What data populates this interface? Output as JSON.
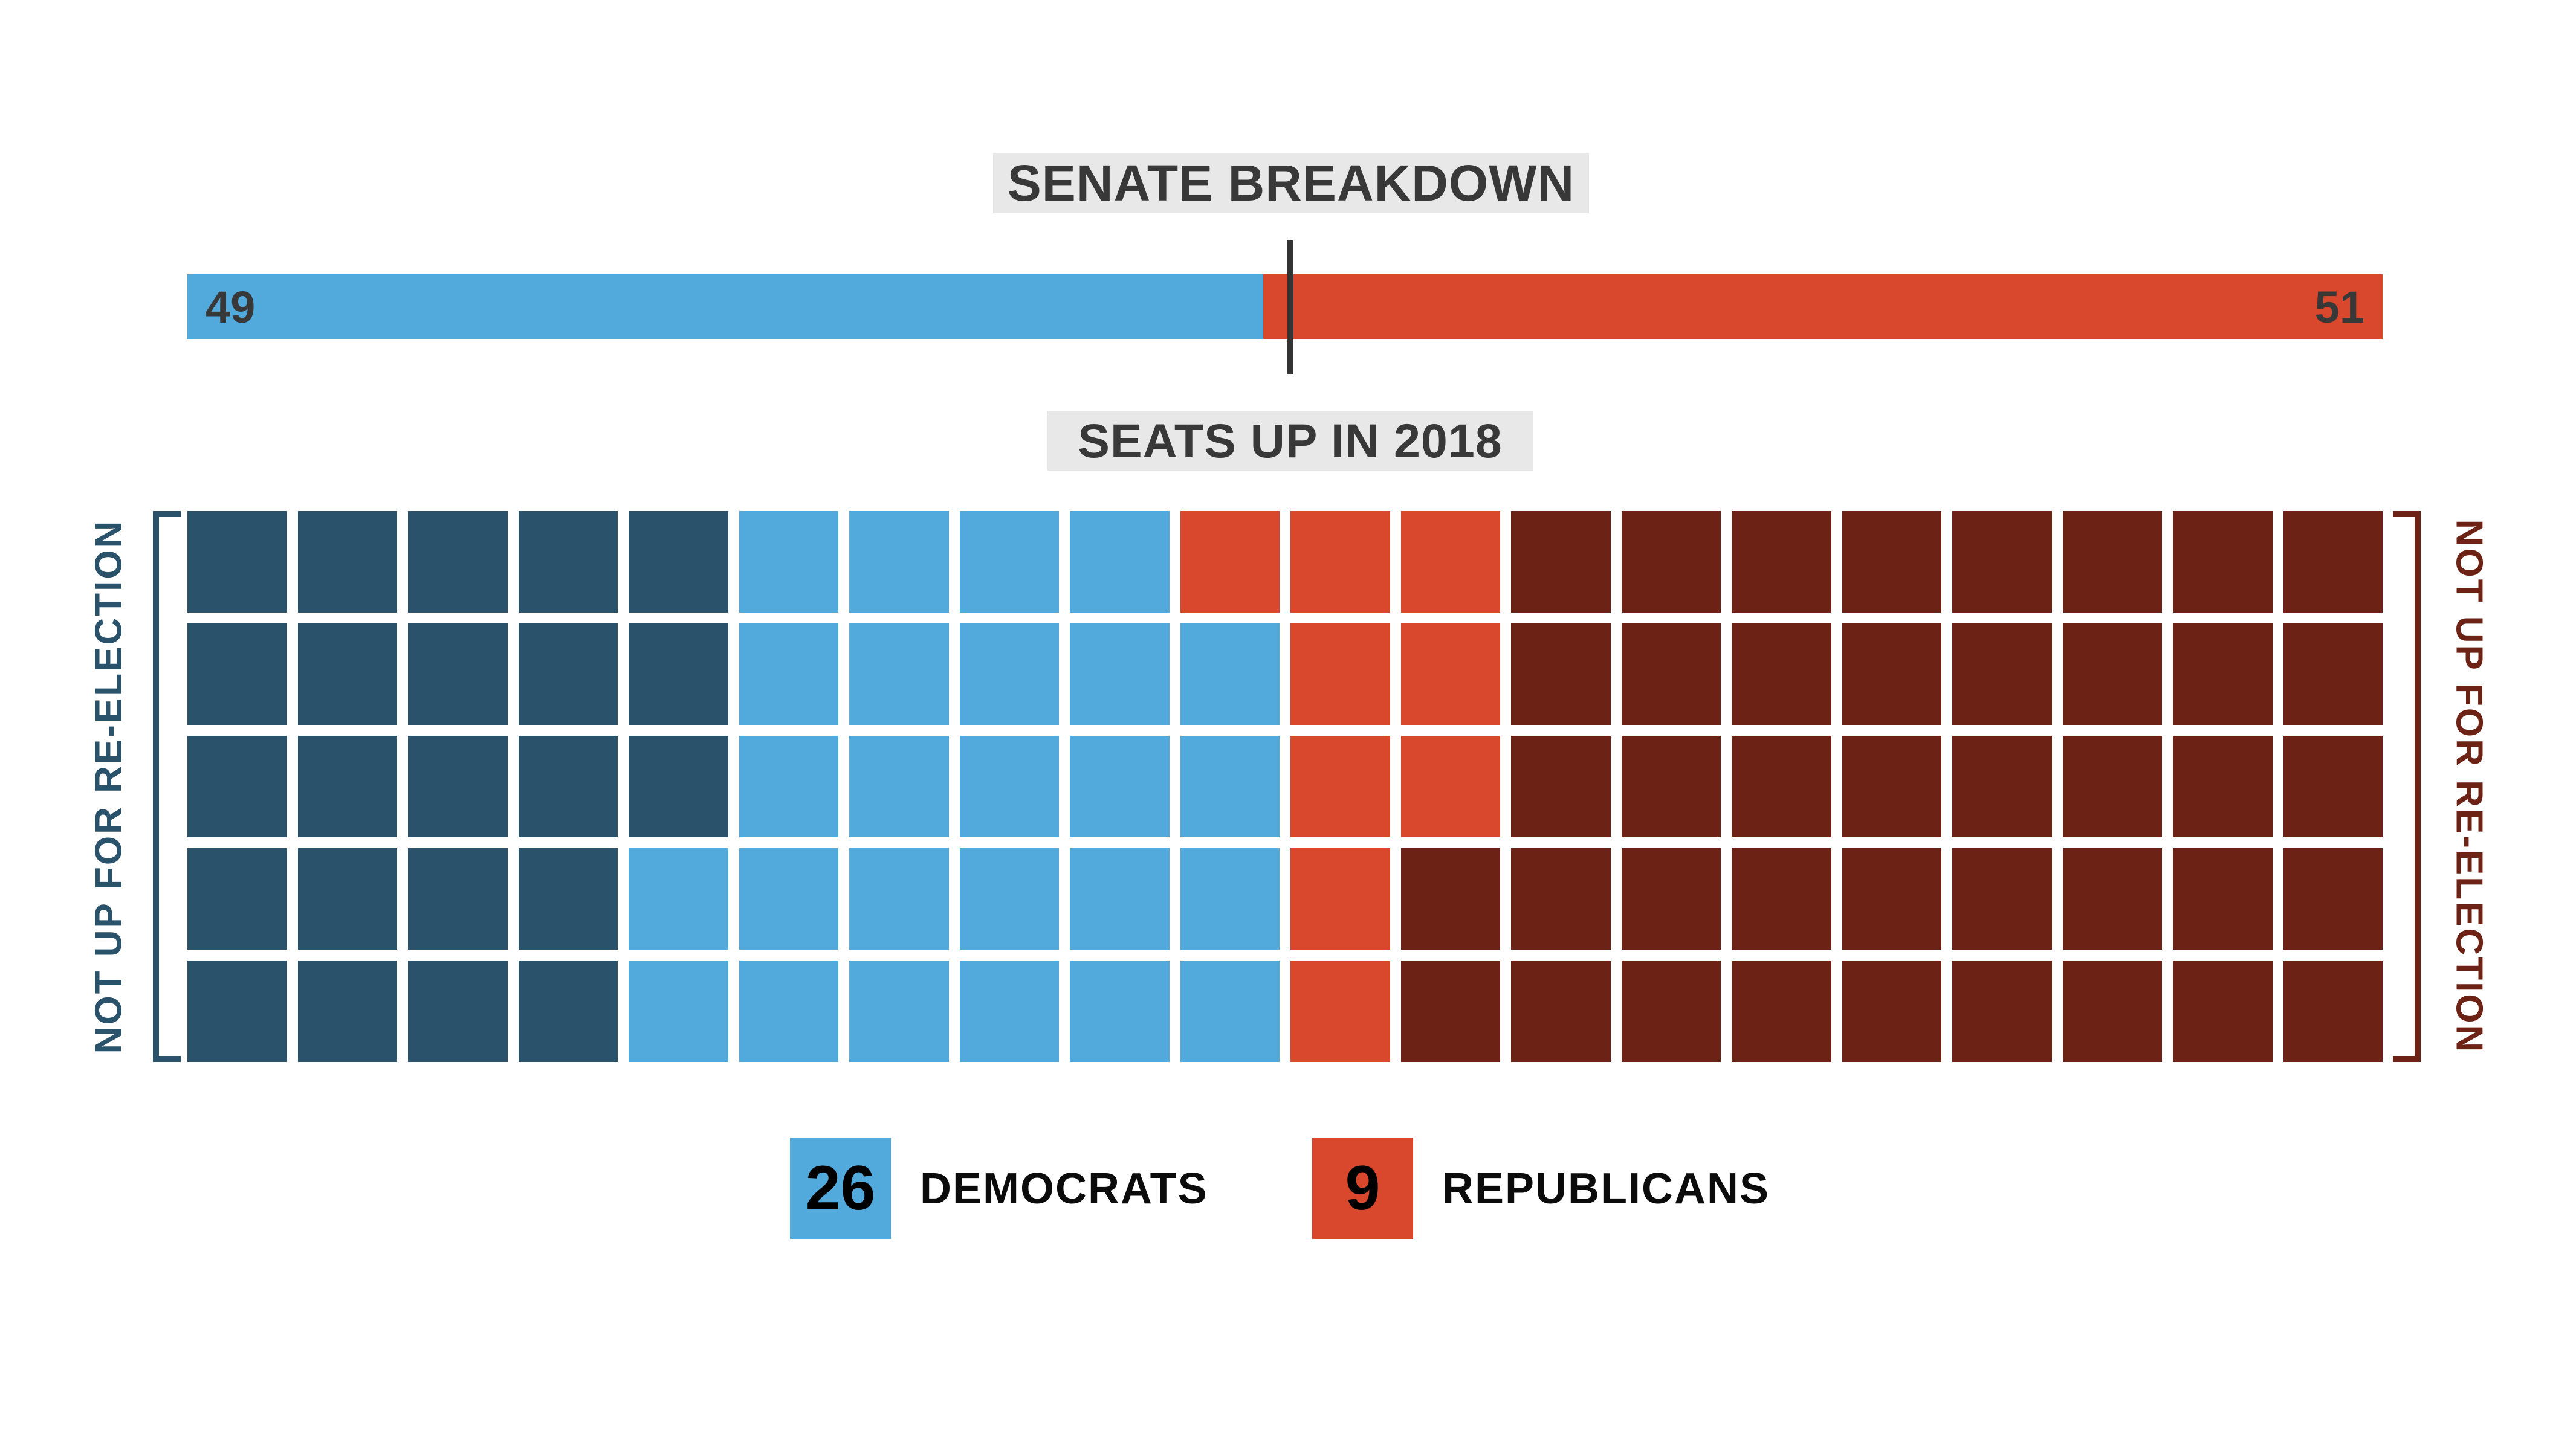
{
  "header": {
    "title": "SENATE BREAKDOWN",
    "subtitle": "SEATS UP IN 2018"
  },
  "bar": {
    "dem_label": "49",
    "rep_label": "51"
  },
  "waffle": {
    "left_label": "NOT UP FOR RE-ELECTION",
    "right_label": "NOT UP FOR RE-ELECTION"
  },
  "legend": {
    "dem": {
      "value": "26",
      "label": "DEMOCRATS"
    },
    "rep": {
      "value": "9",
      "label": "REPUBLICANS"
    }
  },
  "colors": {
    "dem_dark": "#2A536B",
    "dem_light": "#52A9DC",
    "rep_light": "#D9482C",
    "rep_dark": "#6C2214",
    "title_text": "#383838",
    "box_bg": "#E8E8E8",
    "tick": "#333333"
  },
  "chart_data": [
    {
      "type": "bar",
      "title": "SENATE BREAKDOWN",
      "categories": [
        "Democrats",
        "Republicans"
      ],
      "values": [
        49,
        51
      ],
      "total_seats": 100,
      "majority_marker_at": 50,
      "colors": [
        "#52A9DC",
        "#D9482C"
      ],
      "value_labels": [
        "49",
        "51"
      ]
    },
    {
      "type": "heatmap",
      "subtype": "waffle",
      "title": "SEATS UP IN 2018",
      "rows": 5,
      "cols": 20,
      "order": [
        "dem_not_up",
        "dem_up",
        "rep_up",
        "rep_not_up"
      ],
      "categories": [
        {
          "key": "dem_not_up",
          "label": "Democrats not up for re-election",
          "color": "#2A536B",
          "count": 23
        },
        {
          "key": "dem_up",
          "label": "Democrats up in 2018",
          "color": "#52A9DC",
          "count": 26
        },
        {
          "key": "rep_up",
          "label": "Republicans up in 2018",
          "color": "#D9482C",
          "count": 9
        },
        {
          "key": "rep_not_up",
          "label": "Republicans not up for re-election",
          "color": "#6C2214",
          "count": 42
        }
      ],
      "row_layout": [
        {
          "dem_not_up": 5,
          "dem_up": 4,
          "rep_up": 3,
          "rep_not_up": 8
        },
        {
          "dem_not_up": 5,
          "dem_up": 5,
          "rep_up": 2,
          "rep_not_up": 8
        },
        {
          "dem_not_up": 5,
          "dem_up": 5,
          "rep_up": 2,
          "rep_not_up": 8
        },
        {
          "dem_not_up": 4,
          "dem_up": 6,
          "rep_up": 1,
          "rep_not_up": 9
        },
        {
          "dem_not_up": 4,
          "dem_up": 6,
          "rep_up": 1,
          "rep_not_up": 9
        }
      ],
      "side_labels": {
        "left": "NOT UP FOR RE-ELECTION",
        "right": "NOT UP FOR RE-ELECTION"
      },
      "legend": [
        {
          "value": 26,
          "label": "DEMOCRATS",
          "color": "#52A9DC"
        },
        {
          "value": 9,
          "label": "REPUBLICANS",
          "color": "#D9482C"
        }
      ]
    }
  ]
}
